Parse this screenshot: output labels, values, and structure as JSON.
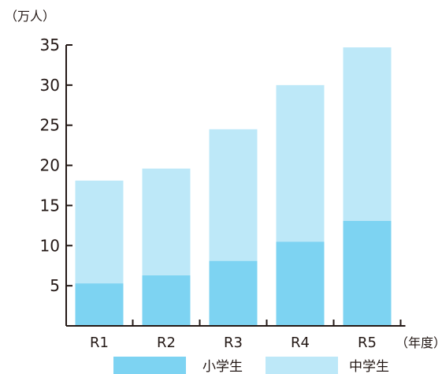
{
  "chart_data": {
    "type": "bar",
    "stacked": true,
    "categories": [
      "R1",
      "R2",
      "R3",
      "R4",
      "R5"
    ],
    "series": [
      {
        "name": "小学生",
        "values": [
          5.3,
          6.3,
          8.1,
          10.5,
          13.1
        ],
        "color": "#7dd3f2"
      },
      {
        "name": "中学生",
        "values": [
          12.8,
          13.3,
          16.4,
          19.5,
          21.6
        ],
        "color": "#bde8f8"
      }
    ],
    "ylabel": "（万人）",
    "xlabel": "（年度）",
    "ylim": [
      0,
      35
    ],
    "yticks": [
      5,
      10,
      15,
      20,
      25,
      30,
      35
    ],
    "grid": false,
    "legend": "bottom",
    "axis_color": "#231815"
  }
}
